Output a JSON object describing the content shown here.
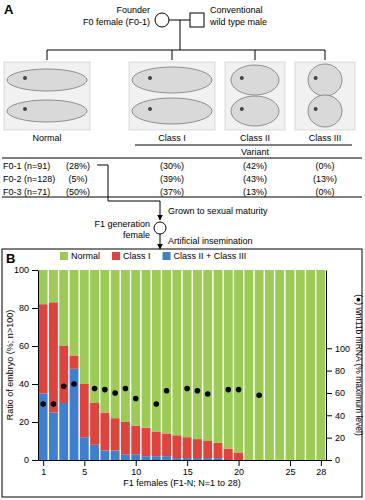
{
  "panel_a": {
    "label": "A",
    "founder": [
      "Founder",
      "F0 female (F0-1)"
    ],
    "male": [
      "Conventional",
      "wild type male"
    ],
    "phenotypes": [
      "Normal",
      "Class I",
      "Class II",
      "Class III"
    ],
    "variant_label": "Variant",
    "table": {
      "rows": [
        [
          "F0-1 (n=91)",
          "(28%)",
          "(30%)",
          "(42%)",
          "(0%)"
        ],
        [
          "F0-2 (n=128)",
          "(5%)",
          "(39%)",
          "(43%)",
          "(13%)"
        ],
        [
          "F0-3 (n=71)",
          "(50%)",
          "(37%)",
          "(13%)",
          "(0%)"
        ]
      ]
    },
    "grown": "Grown to sexual maturity",
    "f1": [
      "F1 generation",
      "female"
    ],
    "insemination": "Artificial insemination",
    "panel_b_label": "B"
  },
  "chart_data": {
    "type": "bar",
    "stacked": true,
    "legend": "top",
    "x_label": "F1 females (F1-N; N=1 to 28)",
    "y_label": "Ratio of embryo (%; n>100)",
    "y2_label": "(●) wnt11b mRNA (% maximum level)",
    "x": [
      1,
      2,
      3,
      4,
      5,
      6,
      7,
      8,
      9,
      10,
      11,
      12,
      13,
      14,
      15,
      16,
      17,
      18,
      19,
      20,
      21,
      22,
      23,
      24,
      25,
      26,
      27,
      28
    ],
    "xlim": [
      0.5,
      28.5
    ],
    "xticks": [
      1,
      5,
      10,
      15,
      20,
      25,
      28
    ],
    "ylim": [
      0,
      100
    ],
    "yticks": [
      0,
      20,
      40,
      60,
      80,
      100
    ],
    "y2lim": [
      0,
      170
    ],
    "y2ticks": [
      0,
      20,
      40,
      60,
      80,
      100
    ],
    "series": [
      {
        "name": "Normal",
        "color": "#9ccc55",
        "values": [
          18,
          17,
          40,
          45,
          60,
          70,
          75,
          78,
          80,
          82,
          83,
          85,
          86,
          87,
          88,
          89,
          90,
          91,
          94,
          96,
          100,
          100,
          100,
          100,
          100,
          100,
          100,
          100
        ]
      },
      {
        "name": "Class I",
        "color": "#e0433b",
        "values": [
          47,
          58,
          30,
          7,
          28,
          22,
          20,
          17,
          17,
          15,
          15,
          13,
          12,
          12,
          11,
          10,
          9,
          8,
          6,
          4,
          0,
          0,
          0,
          0,
          0,
          0,
          0,
          0
        ]
      },
      {
        "name": "Class II + Class III",
        "color": "#3f7fcf",
        "values": [
          35,
          25,
          30,
          48,
          12,
          8,
          5,
          5,
          3,
          3,
          2,
          2,
          2,
          1,
          1,
          1,
          1,
          1,
          0,
          0,
          0,
          0,
          0,
          0,
          0,
          0,
          0,
          0
        ]
      },
      {
        "type": "scatter",
        "axis": "y2",
        "marker": "circle",
        "color": "#000000",
        "values": [
          50,
          50,
          66,
          68,
          null,
          64,
          63,
          60,
          64,
          55,
          null,
          50,
          62,
          null,
          64,
          62,
          59,
          null,
          63,
          63,
          null,
          58,
          null,
          null,
          null,
          null,
          null,
          null
        ]
      }
    ]
  }
}
